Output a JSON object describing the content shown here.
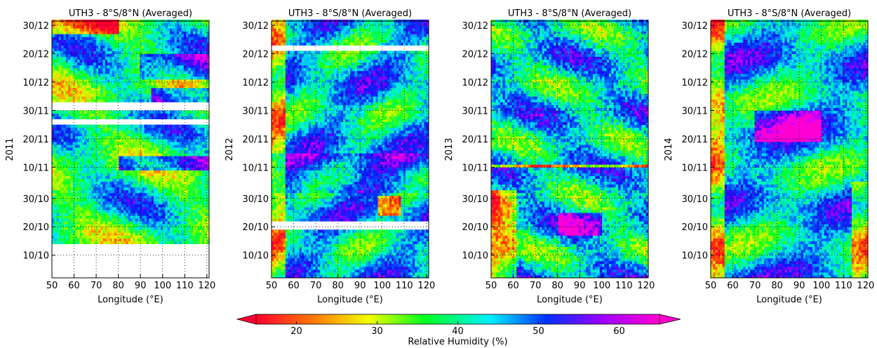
{
  "chart_data": [
    {
      "type": "heatmap",
      "title": "UTH3 - 8°S/8°N (Averaged)",
      "xlabel": "Longitude (°E)",
      "ylabel": "2011",
      "x_ticks": [
        "50",
        "60",
        "70",
        "80",
        "90",
        "100",
        "110",
        "120"
      ],
      "xlim": [
        50,
        121
      ],
      "y_ticks": [
        "10/10",
        "20/10",
        "30/10",
        "10/11",
        "20/11",
        "30/11",
        "10/12",
        "20/12",
        "30/12"
      ],
      "grid": true,
      "missing_bands": [
        [
          "09/10",
          "12/10"
        ],
        [
          "30/11",
          "02/12"
        ],
        [
          "25/11",
          "25/11"
        ]
      ],
      "dominant_features": "moist (60%+) bands mid-Nov and early-Dec east of 90°E; dry band near 30/12 west of 80°E"
    },
    {
      "type": "heatmap",
      "title": "UTH3 - 8°S/8°N (Averaged)",
      "xlabel": "Longitude (°E)",
      "ylabel": "2012",
      "x_ticks": [
        "50",
        "60",
        "70",
        "80",
        "90",
        "100",
        "110",
        "120"
      ],
      "xlim": [
        50,
        121
      ],
      "y_ticks": [
        "10/10",
        "20/10",
        "30/10",
        "10/11",
        "20/11",
        "30/11",
        "10/12",
        "20/12",
        "30/12"
      ],
      "grid": true,
      "missing_bands": [
        [
          "19/10",
          "20/10"
        ],
        [
          "21/12",
          "21/12"
        ]
      ],
      "dominant_features": "dry (20%) near 50-55°E through Nov-Dec; moist eastward-tilted bands early Nov"
    },
    {
      "type": "heatmap",
      "title": "UTH3 - 8°S/8°N (Averaged)",
      "xlabel": "Longitude (°E)",
      "ylabel": "2013",
      "x_ticks": [
        "50",
        "60",
        "70",
        "80",
        "90",
        "100",
        "110",
        "120"
      ],
      "xlim": [
        50,
        121
      ],
      "y_ticks": [
        "10/10",
        "20/10",
        "30/10",
        "10/11",
        "20/11",
        "30/11",
        "10/12",
        "20/12",
        "30/12"
      ],
      "grid": true,
      "missing_bands": [],
      "dominant_features": "very dry (15-20%) west of 60°E in October; dry line at 10/11"
    },
    {
      "type": "heatmap",
      "title": "UTH3 - 8°S/8°N (Averaged)",
      "xlabel": "Longitude (°E)",
      "ylabel": "2014",
      "x_ticks": [
        "50",
        "60",
        "70",
        "80",
        "90",
        "100",
        "110",
        "120"
      ],
      "xlim": [
        50,
        121
      ],
      "y_ticks": [
        "10/10",
        "20/10",
        "30/10",
        "10/11",
        "20/11",
        "30/11",
        "10/12",
        "20/12",
        "30/12"
      ],
      "grid": true,
      "missing_bands": [],
      "dominant_features": "dry near 50°E and around 115-120°E; moist band late Nov-Dec"
    }
  ],
  "colorbar": {
    "label": "Relative Humidity (%)",
    "ticks": [
      "20",
      "30",
      "40",
      "50",
      "60"
    ],
    "range": [
      15,
      65
    ],
    "extend": "both",
    "colormap": "gist_rainbow_r"
  }
}
